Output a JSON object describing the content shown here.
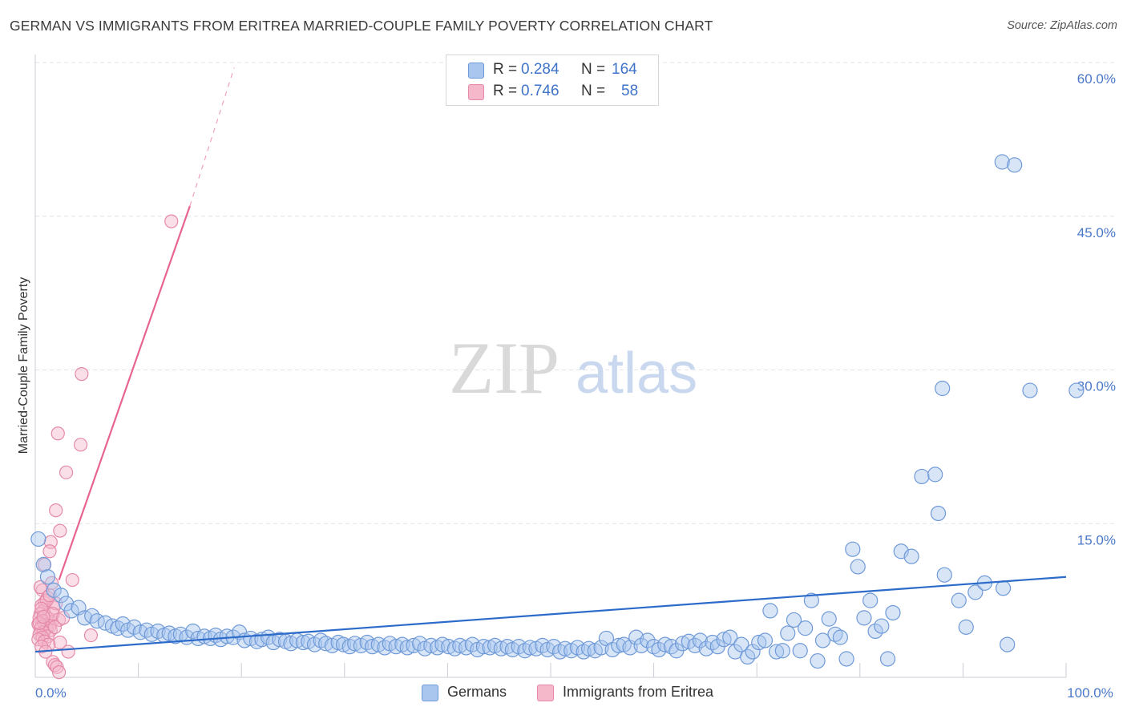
{
  "header": {
    "title": "GERMAN VS IMMIGRANTS FROM ERITREA MARRIED-COUPLE FAMILY POVERTY CORRELATION CHART",
    "source": "Source: ZipAtlas.com"
  },
  "watermark": {
    "zip": "ZIP",
    "atlas": "atlas"
  },
  "legend_top": {
    "rows": [
      {
        "r_label": "R =",
        "r_value": "0.284",
        "n_label": "N =",
        "n_value": "164",
        "color": "#a9c6ee"
      },
      {
        "r_label": "R =",
        "r_value": "0.746",
        "n_label": "N =",
        "n_value": "58",
        "color": "#f5b8cb"
      }
    ]
  },
  "legend_bottom": {
    "items": [
      {
        "label": "Germans",
        "color": "#a9c6ee"
      },
      {
        "label": "Immigrants from Eritrea",
        "color": "#f5b8cb"
      }
    ]
  },
  "colors": {
    "blue_fill": "#a9c6ee",
    "blue_stroke": "#6f9ad8",
    "blue_line": "#2c6bc9",
    "pink_fill": "#f5b8cb",
    "pink_stroke": "#e58aa8",
    "pink_line": "#e8648f",
    "grid": "#dfe3ea",
    "tick": "#4a78c8"
  },
  "chart_data": {
    "type": "scatter",
    "title": "GERMAN VS IMMIGRANTS FROM ERITREA MARRIED-COUPLE FAMILY POVERTY CORRELATION CHART",
    "xlabel": "",
    "ylabel": "Married-Couple Family Poverty",
    "xlim": [
      0,
      100
    ],
    "ylim": [
      0,
      60
    ],
    "y_ticks": [
      {
        "value": 15,
        "label": "15.0%"
      },
      {
        "value": 30,
        "label": "30.0%"
      },
      {
        "value": 45,
        "label": "45.0%"
      },
      {
        "value": 60,
        "label": "60.0%"
      }
    ],
    "x_ticks": [
      {
        "value": 0,
        "label": "0.0%"
      },
      {
        "value": 100,
        "label": "100.0%"
      }
    ],
    "x_minor_ticks": [
      10,
      20,
      30,
      40,
      50,
      60,
      70,
      80,
      90
    ],
    "series": [
      {
        "name": "Germans",
        "r": 0.284,
        "n": 164,
        "trend": {
          "x0": 0,
          "y0": 2.5,
          "x1": 100,
          "y1": 9.8
        },
        "points": [
          [
            0.3,
            13.5
          ],
          [
            0.8,
            11.0
          ],
          [
            1.2,
            9.8
          ],
          [
            1.8,
            8.5
          ],
          [
            2.5,
            8.0
          ],
          [
            3.0,
            7.2
          ],
          [
            3.5,
            6.5
          ],
          [
            4.2,
            6.8
          ],
          [
            4.8,
            5.8
          ],
          [
            5.5,
            6.0
          ],
          [
            6.0,
            5.5
          ],
          [
            6.8,
            5.3
          ],
          [
            7.5,
            5.0
          ],
          [
            8.0,
            4.8
          ],
          [
            8.5,
            5.2
          ],
          [
            9.0,
            4.6
          ],
          [
            9.6,
            4.9
          ],
          [
            10.2,
            4.4
          ],
          [
            10.8,
            4.6
          ],
          [
            11.3,
            4.2
          ],
          [
            11.9,
            4.5
          ],
          [
            12.5,
            4.1
          ],
          [
            13.0,
            4.3
          ],
          [
            13.6,
            4.0
          ],
          [
            14.1,
            4.2
          ],
          [
            14.7,
            3.9
          ],
          [
            15.3,
            4.5
          ],
          [
            15.8,
            3.8
          ],
          [
            16.4,
            4.0
          ],
          [
            17.0,
            3.8
          ],
          [
            17.5,
            4.1
          ],
          [
            18.0,
            3.7
          ],
          [
            18.6,
            4.0
          ],
          [
            19.2,
            3.9
          ],
          [
            19.8,
            4.4
          ],
          [
            20.3,
            3.6
          ],
          [
            20.9,
            3.8
          ],
          [
            21.5,
            3.5
          ],
          [
            22.0,
            3.7
          ],
          [
            22.6,
            3.9
          ],
          [
            23.1,
            3.4
          ],
          [
            23.7,
            3.7
          ],
          [
            24.3,
            3.5
          ],
          [
            24.8,
            3.3
          ],
          [
            25.4,
            3.6
          ],
          [
            26.0,
            3.4
          ],
          [
            26.5,
            3.5
          ],
          [
            27.1,
            3.2
          ],
          [
            27.7,
            3.6
          ],
          [
            28.2,
            3.3
          ],
          [
            28.8,
            3.1
          ],
          [
            29.4,
            3.4
          ],
          [
            29.9,
            3.2
          ],
          [
            30.5,
            3.0
          ],
          [
            31.0,
            3.3
          ],
          [
            31.6,
            3.1
          ],
          [
            32.2,
            3.4
          ],
          [
            32.7,
            3.0
          ],
          [
            33.3,
            3.2
          ],
          [
            33.9,
            2.9
          ],
          [
            34.4,
            3.3
          ],
          [
            35.0,
            3.0
          ],
          [
            35.6,
            3.2
          ],
          [
            36.1,
            2.9
          ],
          [
            36.7,
            3.1
          ],
          [
            37.3,
            3.3
          ],
          [
            37.8,
            2.8
          ],
          [
            38.4,
            3.1
          ],
          [
            39.0,
            2.9
          ],
          [
            39.5,
            3.2
          ],
          [
            40.1,
            3.0
          ],
          [
            40.7,
            2.8
          ],
          [
            41.2,
            3.1
          ],
          [
            41.8,
            2.9
          ],
          [
            42.4,
            3.2
          ],
          [
            42.9,
            2.7
          ],
          [
            43.5,
            3.0
          ],
          [
            44.1,
            2.9
          ],
          [
            44.6,
            3.1
          ],
          [
            45.2,
            2.8
          ],
          [
            45.8,
            3.0
          ],
          [
            46.3,
            2.7
          ],
          [
            46.9,
            3.0
          ],
          [
            47.5,
            2.6
          ],
          [
            48.0,
            2.9
          ],
          [
            48.6,
            2.8
          ],
          [
            49.2,
            3.1
          ],
          [
            49.7,
            2.7
          ],
          [
            50.3,
            3.0
          ],
          [
            50.9,
            2.5
          ],
          [
            51.4,
            2.8
          ],
          [
            52.0,
            2.6
          ],
          [
            52.6,
            2.9
          ],
          [
            53.2,
            2.5
          ],
          [
            53.7,
            2.8
          ],
          [
            54.3,
            2.6
          ],
          [
            54.9,
            2.9
          ],
          [
            55.4,
            3.8
          ],
          [
            56.0,
            2.7
          ],
          [
            56.6,
            3.1
          ],
          [
            57.1,
            3.2
          ],
          [
            57.7,
            2.9
          ],
          [
            58.3,
            3.9
          ],
          [
            58.8,
            3.1
          ],
          [
            59.4,
            3.6
          ],
          [
            60.0,
            3.0
          ],
          [
            60.5,
            2.7
          ],
          [
            61.1,
            3.2
          ],
          [
            61.7,
            3.0
          ],
          [
            62.2,
            2.6
          ],
          [
            62.8,
            3.3
          ],
          [
            63.4,
            3.5
          ],
          [
            64.0,
            3.1
          ],
          [
            64.5,
            3.6
          ],
          [
            65.1,
            2.8
          ],
          [
            65.7,
            3.4
          ],
          [
            66.2,
            3.0
          ],
          [
            66.8,
            3.7
          ],
          [
            67.4,
            3.9
          ],
          [
            67.9,
            2.5
          ],
          [
            68.5,
            3.2
          ],
          [
            69.1,
            2.0
          ],
          [
            69.6,
            2.5
          ],
          [
            70.2,
            3.4
          ],
          [
            70.8,
            3.6
          ],
          [
            71.3,
            6.5
          ],
          [
            71.9,
            2.5
          ],
          [
            72.5,
            2.6
          ],
          [
            73.0,
            4.3
          ],
          [
            73.6,
            5.6
          ],
          [
            74.2,
            2.6
          ],
          [
            74.7,
            4.8
          ],
          [
            75.3,
            7.5
          ],
          [
            75.9,
            1.6
          ],
          [
            76.4,
            3.6
          ],
          [
            77.0,
            5.7
          ],
          [
            77.6,
            4.2
          ],
          [
            78.1,
            3.9
          ],
          [
            78.7,
            1.8
          ],
          [
            79.3,
            12.5
          ],
          [
            79.8,
            10.8
          ],
          [
            80.4,
            5.8
          ],
          [
            81.0,
            7.5
          ],
          [
            81.5,
            4.5
          ],
          [
            82.1,
            5.0
          ],
          [
            82.7,
            1.8
          ],
          [
            83.2,
            6.3
          ],
          [
            84.0,
            12.3
          ],
          [
            85.0,
            11.8
          ],
          [
            86.0,
            19.6
          ],
          [
            87.3,
            19.8
          ],
          [
            87.6,
            16.0
          ],
          [
            88.2,
            10.0
          ],
          [
            89.6,
            7.5
          ],
          [
            90.3,
            4.9
          ],
          [
            91.2,
            8.3
          ],
          [
            92.1,
            9.2
          ],
          [
            93.9,
            8.7
          ],
          [
            94.3,
            3.2
          ],
          [
            96.5,
            28.0
          ],
          [
            93.8,
            50.3
          ],
          [
            95.0,
            50.0
          ],
          [
            101.0,
            28.0
          ],
          [
            88.0,
            28.2
          ]
        ]
      },
      {
        "name": "Immigrants from Eritrea",
        "r": 0.746,
        "n": 58,
        "trend": {
          "x0": 2.3,
          "y0": 9.5,
          "x1": 15.0,
          "y1": 46.0,
          "dash_x1": 19.3,
          "dash_y1": 59.5
        },
        "points": [
          [
            13.2,
            44.5
          ],
          [
            4.5,
            29.6
          ],
          [
            2.2,
            23.8
          ],
          [
            4.4,
            22.7
          ],
          [
            3.0,
            20.0
          ],
          [
            2.0,
            16.3
          ],
          [
            2.4,
            14.3
          ],
          [
            1.5,
            13.2
          ],
          [
            1.4,
            12.3
          ],
          [
            0.9,
            11.0
          ],
          [
            3.6,
            9.5
          ],
          [
            0.7,
            8.5
          ],
          [
            1.2,
            7.8
          ],
          [
            0.9,
            7.3
          ],
          [
            0.6,
            7.0
          ],
          [
            1.8,
            6.8
          ],
          [
            0.8,
            6.5
          ],
          [
            0.5,
            6.2
          ],
          [
            1.0,
            6.0
          ],
          [
            0.4,
            5.8
          ],
          [
            1.3,
            5.7
          ],
          [
            0.7,
            5.5
          ],
          [
            1.6,
            5.4
          ],
          [
            2.3,
            5.6
          ],
          [
            0.3,
            5.2
          ],
          [
            0.9,
            5.1
          ],
          [
            1.4,
            5.0
          ],
          [
            0.6,
            4.9
          ],
          [
            1.1,
            4.8
          ],
          [
            0.5,
            4.7
          ],
          [
            1.5,
            4.6
          ],
          [
            0.8,
            4.4
          ],
          [
            0.4,
            4.2
          ],
          [
            1.2,
            4.0
          ],
          [
            0.7,
            3.9
          ],
          [
            0.3,
            3.7
          ],
          [
            0.9,
            3.5
          ],
          [
            2.4,
            3.4
          ],
          [
            1.3,
            3.2
          ],
          [
            0.6,
            3.0
          ],
          [
            5.4,
            4.1
          ],
          [
            1.0,
            2.5
          ],
          [
            3.2,
            2.5
          ],
          [
            1.7,
            1.5
          ],
          [
            1.9,
            1.2
          ],
          [
            2.1,
            1.0
          ],
          [
            2.3,
            0.5
          ],
          [
            0.5,
            8.8
          ],
          [
            1.6,
            9.2
          ],
          [
            2.0,
            7.2
          ],
          [
            1.1,
            7.5
          ],
          [
            1.7,
            6.2
          ],
          [
            0.4,
            5.3
          ],
          [
            1.9,
            4.9
          ],
          [
            0.6,
            6.7
          ],
          [
            1.4,
            8.0
          ],
          [
            2.7,
            5.8
          ],
          [
            0.8,
            5.9
          ]
        ]
      }
    ]
  }
}
